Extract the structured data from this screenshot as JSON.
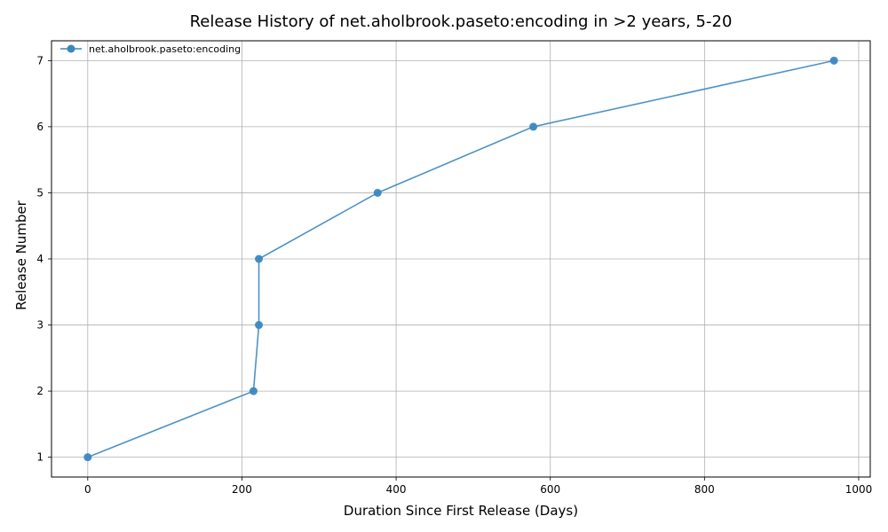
{
  "chart_data": {
    "type": "line",
    "title": "Release History of net.aholbrook.paseto:encoding in >2 years, 5-20",
    "xlabel": "Duration Since First Release (Days)",
    "ylabel": "Release Number",
    "xlim": [
      -47,
      1015
    ],
    "ylim": [
      0.7,
      7.3
    ],
    "xticks": [
      0,
      200,
      400,
      600,
      800,
      1000
    ],
    "yticks": [
      1,
      2,
      3,
      4,
      5,
      6,
      7
    ],
    "grid": true,
    "legend_position": "top-left",
    "series": [
      {
        "name": "net.aholbrook.paseto:encoding",
        "color": "#3a87c0",
        "marker": "circle",
        "x": [
          0,
          215,
          222,
          222,
          376,
          578,
          968
        ],
        "y": [
          1,
          2,
          3,
          4,
          5,
          6,
          7
        ]
      }
    ]
  }
}
